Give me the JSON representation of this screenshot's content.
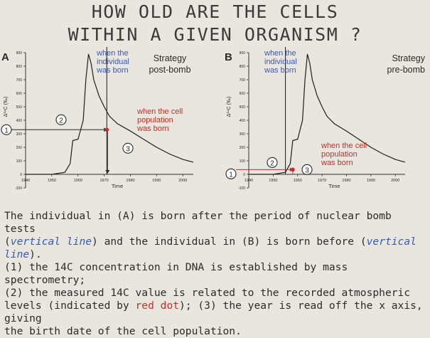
{
  "title_line1": "HOW OLD ARE THE CELLS",
  "title_line2": "WITHIN A GIVEN ORGANISM ?",
  "colors": {
    "red": "#c0302a",
    "blue": "#3559b5",
    "ink": "#2a2a2a"
  },
  "chart_data": [
    {
      "type": "line",
      "panel_letter": "A",
      "strategy_label": [
        "Strategy",
        "post-bomb"
      ],
      "xlabel": "Time",
      "ylabel": "Δ¹⁴C (‰)",
      "x_ticks": [
        "1940",
        "1950",
        "1960",
        "1970",
        "1980",
        "1990",
        "2000"
      ],
      "x_tick_values": [
        1940,
        1950,
        1960,
        1970,
        1980,
        1990,
        2000
      ],
      "y_ticks": [
        "900",
        "800",
        "700",
        "600",
        "500",
        "400",
        "300",
        "200",
        "100",
        "0",
        "-100"
      ],
      "y_tick_values": [
        900,
        800,
        700,
        600,
        500,
        400,
        300,
        200,
        100,
        0,
        -100
      ],
      "xlim": [
        1940,
        2004
      ],
      "ylim": [
        -100,
        900
      ],
      "series": [
        {
          "x": [
            1940,
            1950,
            1955,
            1957,
            1958,
            1960,
            1962,
            1963,
            1964,
            1965,
            1966,
            1968,
            1970,
            1972,
            1975,
            1980,
            1985,
            1990,
            1995,
            2000,
            2004
          ],
          "y": [
            0,
            0,
            15,
            80,
            250,
            260,
            400,
            700,
            890,
            820,
            700,
            580,
            500,
            430,
            375,
            320,
            260,
            200,
            150,
            110,
            90
          ]
        }
      ],
      "birth_line_year": 1971,
      "red_dot": {
        "x": 1971,
        "y": 330
      },
      "markers": [
        "1",
        "2",
        "3"
      ],
      "annotations": {
        "when_individual": [
          "when the",
          "individual",
          "was born"
        ],
        "when_cell": [
          "when the cell",
          "population",
          "was born"
        ]
      }
    },
    {
      "type": "line",
      "panel_letter": "B",
      "strategy_label": [
        "Strategy",
        "pre-bomb"
      ],
      "xlabel": "Time",
      "ylabel": "Δ¹⁴C (‰)",
      "x_ticks": [
        "1940",
        "1950",
        "1960",
        "1970",
        "1980",
        "1990",
        "2000"
      ],
      "x_tick_values": [
        1940,
        1950,
        1960,
        1970,
        1980,
        1990,
        2000
      ],
      "y_ticks": [
        "900",
        "800",
        "700",
        "600",
        "500",
        "400",
        "300",
        "200",
        "100",
        "0",
        "-100"
      ],
      "y_tick_values": [
        900,
        800,
        700,
        600,
        500,
        400,
        300,
        200,
        100,
        0,
        -100
      ],
      "xlim": [
        1940,
        2004
      ],
      "ylim": [
        -100,
        900
      ],
      "series": [
        {
          "x": [
            1940,
            1950,
            1955,
            1957,
            1958,
            1960,
            1962,
            1963,
            1964,
            1965,
            1966,
            1968,
            1970,
            1972,
            1975,
            1980,
            1985,
            1990,
            1995,
            2000,
            2004
          ],
          "y": [
            0,
            0,
            15,
            80,
            250,
            260,
            400,
            700,
            890,
            820,
            700,
            580,
            500,
            430,
            375,
            320,
            260,
            200,
            150,
            110,
            90
          ]
        }
      ],
      "birth_line_year": 1955,
      "red_dot": {
        "x": 1958,
        "y": 35
      },
      "markers": [
        "1",
        "2",
        "3"
      ],
      "annotations": {
        "when_individual": [
          "when the",
          "individual",
          "was born"
        ],
        "when_cell": [
          "when the cell",
          "population",
          "was born"
        ]
      }
    }
  ],
  "caption": [
    [
      {
        "t": "The individual in (A) is born after the period of nuclear bomb tests"
      }
    ],
    [
      {
        "t": "("
      },
      {
        "t": "vertical line",
        "c": "ital"
      },
      {
        "t": ") and the individual in (B) is born before ("
      },
      {
        "t": "vertical line",
        "c": "ital"
      },
      {
        "t": ")."
      }
    ],
    [
      {
        "t": "(1) the 14C concentration in DNA is established by mass spectrometry;"
      }
    ],
    [
      {
        "t": "(2) the measured 14C value is related to the recorded atmospheric"
      }
    ],
    [
      {
        "t": "levels (indicated by "
      },
      {
        "t": "red dot",
        "c": "red"
      },
      {
        "t": "); (3) the year is read off the x axis, giving"
      }
    ],
    [
      {
        "t": "the birth date of the cell population."
      }
    ]
  ]
}
